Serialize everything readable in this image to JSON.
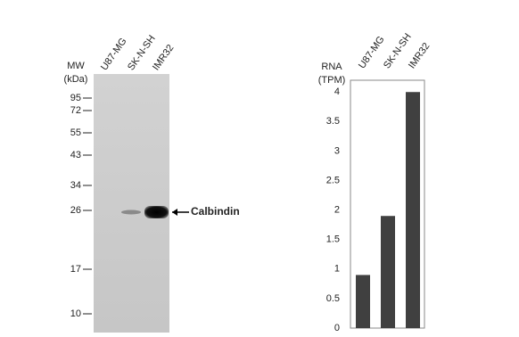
{
  "blot": {
    "lanes": [
      "U87-MG",
      "SK-N-SH",
      "IMR32"
    ],
    "mw_title": [
      "MW",
      "(kDa)"
    ],
    "mw_markers": [
      95,
      72,
      55,
      43,
      34,
      26,
      17,
      10
    ],
    "band_label": "Calbindin"
  },
  "chart_data": {
    "type": "bar",
    "ylabel": [
      "RNA",
      "(TPM)"
    ],
    "categories": [
      "U87-MG",
      "SK-N-SH",
      "IMR32"
    ],
    "values": [
      0.9,
      1.9,
      4.0
    ],
    "color": "#404040",
    "ylim": [
      0,
      4.2
    ],
    "yticks": [
      0,
      0.5,
      1,
      1.5,
      2,
      2.5,
      3,
      3.5,
      4
    ]
  }
}
